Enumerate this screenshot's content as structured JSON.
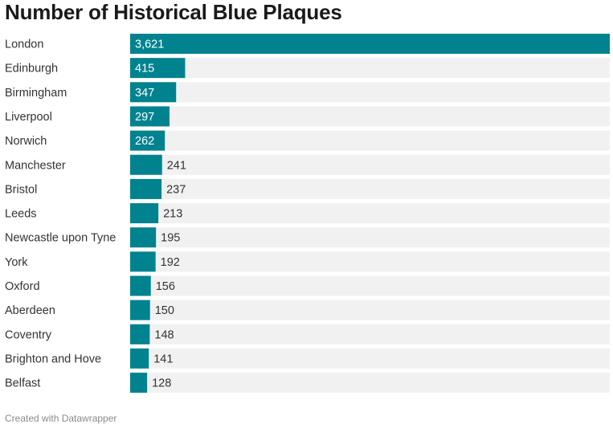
{
  "chart_data": {
    "type": "bar",
    "title": "Number of Historical Blue Plaques",
    "orientation": "horizontal",
    "categories": [
      "London",
      "Edinburgh",
      "Birmingham",
      "Liverpool",
      "Norwich",
      "Manchester",
      "Bristol",
      "Leeds",
      "Newcastle upon Tyne",
      "York",
      "Oxford",
      "Aberdeen",
      "Coventry",
      "Brighton and Hove",
      "Belfast"
    ],
    "values": [
      3621,
      415,
      347,
      297,
      262,
      241,
      237,
      213,
      195,
      192,
      156,
      150,
      148,
      141,
      128
    ],
    "value_labels": [
      "3,621",
      "415",
      "347",
      "297",
      "262",
      "241",
      "237",
      "213",
      "195",
      "192",
      "156",
      "150",
      "148",
      "141",
      "128"
    ],
    "xlim": [
      0,
      3621
    ],
    "bar_color": "#00838f",
    "track_color": "#f1f1f1",
    "label_inside_color": "#ffffff",
    "label_outside_color": "#333333"
  },
  "footer": {
    "credit": "Created with Datawrapper"
  }
}
